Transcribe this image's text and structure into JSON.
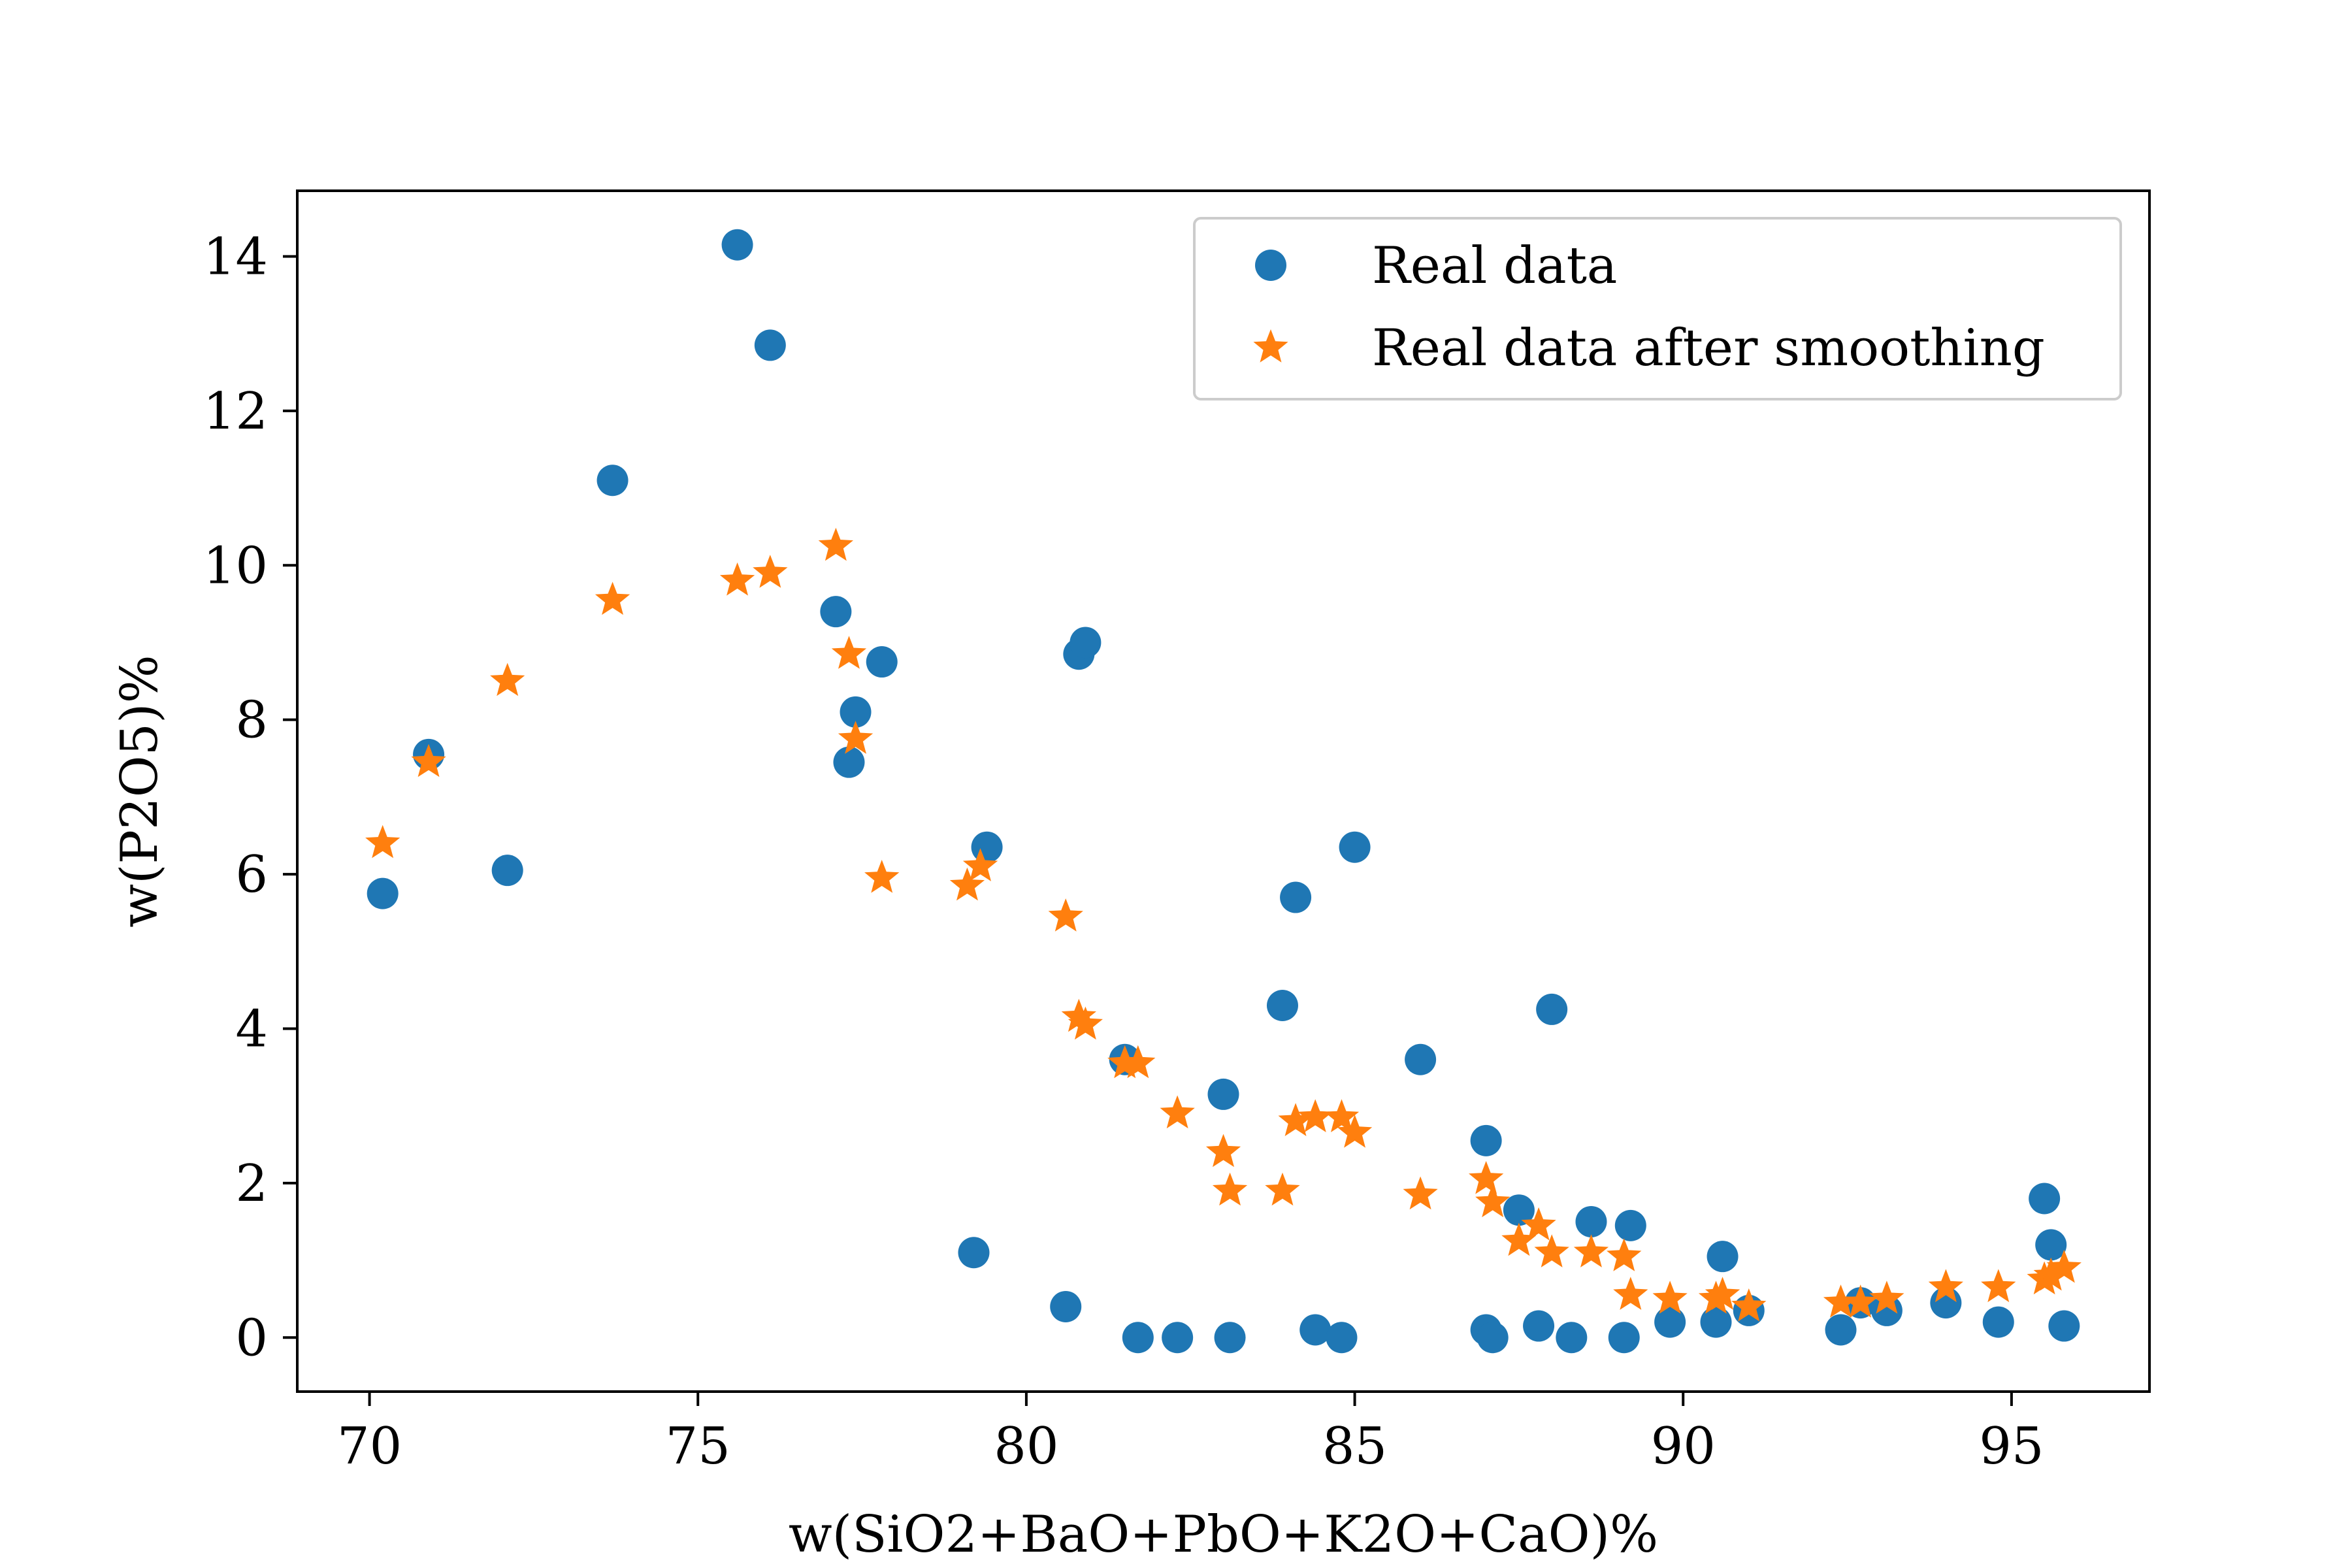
{
  "chart_data": {
    "type": "scatter",
    "xlabel": "w(SiO2+BaO+PbO+K2O+CaO)%",
    "ylabel": "w(P2O5)%",
    "xlim": [
      68.9,
      97.1
    ],
    "ylim": [
      -0.7,
      14.85
    ],
    "xticks": [
      70,
      75,
      80,
      85,
      90,
      95
    ],
    "yticks": [
      0,
      2,
      4,
      6,
      8,
      10,
      12,
      14
    ],
    "grid": false,
    "legend_position": "top-right",
    "series": [
      {
        "name": "Real data",
        "marker": "circle",
        "color": "#1f77b4",
        "points": [
          [
            70.2,
            5.75
          ],
          [
            70.9,
            7.55
          ],
          [
            72.1,
            6.05
          ],
          [
            73.7,
            11.1
          ],
          [
            75.6,
            14.15
          ],
          [
            76.1,
            12.85
          ],
          [
            77.1,
            9.4
          ],
          [
            77.3,
            7.45
          ],
          [
            77.4,
            8.1
          ],
          [
            77.8,
            8.75
          ],
          [
            79.2,
            1.1
          ],
          [
            79.4,
            6.35
          ],
          [
            80.6,
            0.4
          ],
          [
            80.8,
            8.85
          ],
          [
            80.9,
            9.0
          ],
          [
            81.5,
            3.6
          ],
          [
            81.7,
            0.0
          ],
          [
            82.3,
            0.0
          ],
          [
            83.0,
            3.15
          ],
          [
            83.1,
            0.0
          ],
          [
            83.9,
            4.3
          ],
          [
            84.1,
            5.7
          ],
          [
            84.4,
            0.1
          ],
          [
            84.8,
            0.0
          ],
          [
            85.0,
            6.35
          ],
          [
            86.0,
            3.6
          ],
          [
            87.0,
            2.55
          ],
          [
            87.0,
            0.1
          ],
          [
            87.1,
            0.0
          ],
          [
            87.5,
            1.65
          ],
          [
            87.8,
            0.15
          ],
          [
            88.0,
            4.25
          ],
          [
            88.3,
            0.0
          ],
          [
            88.6,
            1.5
          ],
          [
            89.1,
            0.0
          ],
          [
            89.2,
            1.45
          ],
          [
            89.8,
            0.2
          ],
          [
            90.5,
            0.2
          ],
          [
            90.6,
            1.05
          ],
          [
            91.0,
            0.35
          ],
          [
            92.4,
            0.1
          ],
          [
            92.7,
            0.45
          ],
          [
            93.1,
            0.35
          ],
          [
            94.0,
            0.45
          ],
          [
            94.8,
            0.2
          ],
          [
            95.5,
            1.8
          ],
          [
            95.6,
            1.2
          ],
          [
            95.8,
            0.15
          ]
        ]
      },
      {
        "name": "Real data after smoothing",
        "marker": "star",
        "color": "#ff7f0e",
        "points": [
          [
            70.2,
            6.4
          ],
          [
            70.9,
            7.45
          ],
          [
            72.1,
            8.5
          ],
          [
            73.7,
            9.55
          ],
          [
            75.6,
            9.8
          ],
          [
            76.1,
            9.9
          ],
          [
            77.1,
            10.25
          ],
          [
            77.3,
            8.85
          ],
          [
            77.4,
            7.75
          ],
          [
            77.8,
            5.95
          ],
          [
            79.1,
            5.85
          ],
          [
            79.3,
            6.1
          ],
          [
            80.6,
            5.45
          ],
          [
            80.8,
            4.15
          ],
          [
            80.9,
            4.05
          ],
          [
            81.5,
            3.55
          ],
          [
            81.7,
            3.55
          ],
          [
            82.3,
            2.9
          ],
          [
            83.0,
            2.4
          ],
          [
            83.1,
            1.9
          ],
          [
            83.9,
            1.9
          ],
          [
            84.1,
            2.8
          ],
          [
            84.4,
            2.85
          ],
          [
            84.8,
            2.85
          ],
          [
            85.0,
            2.65
          ],
          [
            86.0,
            1.85
          ],
          [
            87.0,
            2.05
          ],
          [
            87.1,
            1.75
          ],
          [
            87.5,
            1.25
          ],
          [
            87.8,
            1.45
          ],
          [
            88.0,
            1.1
          ],
          [
            88.6,
            1.1
          ],
          [
            89.1,
            1.05
          ],
          [
            89.2,
            0.55
          ],
          [
            89.8,
            0.5
          ],
          [
            90.5,
            0.5
          ],
          [
            90.6,
            0.55
          ],
          [
            91.0,
            0.4
          ],
          [
            92.4,
            0.45
          ],
          [
            92.7,
            0.45
          ],
          [
            93.1,
            0.5
          ],
          [
            94.0,
            0.65
          ],
          [
            94.8,
            0.65
          ],
          [
            95.5,
            0.75
          ],
          [
            95.6,
            0.8
          ],
          [
            95.8,
            0.9
          ]
        ]
      }
    ]
  }
}
